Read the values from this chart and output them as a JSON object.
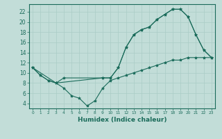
{
  "xlabel": "Humidex (Indice chaleur)",
  "ylabel": "",
  "bg_color": "#c2ddd8",
  "line_color": "#1a6b5a",
  "grid_color": "#aaccc6",
  "xlim": [
    -0.5,
    23.5
  ],
  "ylim": [
    3,
    23.5
  ],
  "yticks": [
    4,
    6,
    8,
    10,
    12,
    14,
    16,
    18,
    20,
    22
  ],
  "xticks": [
    0,
    1,
    2,
    3,
    4,
    5,
    6,
    7,
    8,
    9,
    10,
    11,
    12,
    13,
    14,
    15,
    16,
    17,
    18,
    19,
    20,
    21,
    22,
    23
  ],
  "line1_x": [
    0,
    1,
    2,
    3,
    4,
    5,
    6,
    7,
    8,
    9,
    10,
    11,
    12,
    13,
    14,
    15,
    16,
    17,
    18,
    19,
    20,
    21,
    22,
    23
  ],
  "line1_y": [
    11,
    9.5,
    8.5,
    8,
    7,
    5.5,
    5,
    3.5,
    4.5,
    7,
    8.5,
    9,
    9.5,
    10,
    10.5,
    11,
    11.5,
    12,
    12.5,
    12.5,
    13,
    13,
    13,
    13
  ],
  "line2_x": [
    0,
    1,
    2,
    3,
    4,
    9,
    10,
    11,
    12,
    13,
    14,
    15,
    16,
    17,
    18,
    19,
    20,
    21,
    22,
    23
  ],
  "line2_y": [
    11,
    9.5,
    8.5,
    8,
    9,
    9,
    9,
    11,
    15,
    17.5,
    18.5,
    19,
    20.5,
    21.5,
    22.5,
    22.5,
    21,
    17.5,
    14.5,
    13
  ],
  "line3_x": [
    0,
    3,
    9,
    10,
    11,
    12,
    13,
    14,
    15,
    16,
    17,
    18,
    19,
    20,
    21,
    22,
    23
  ],
  "line3_y": [
    11,
    8,
    9,
    9,
    11,
    15,
    17.5,
    18.5,
    19,
    20.5,
    21.5,
    22.5,
    22.5,
    21,
    17.5,
    14.5,
    13
  ]
}
